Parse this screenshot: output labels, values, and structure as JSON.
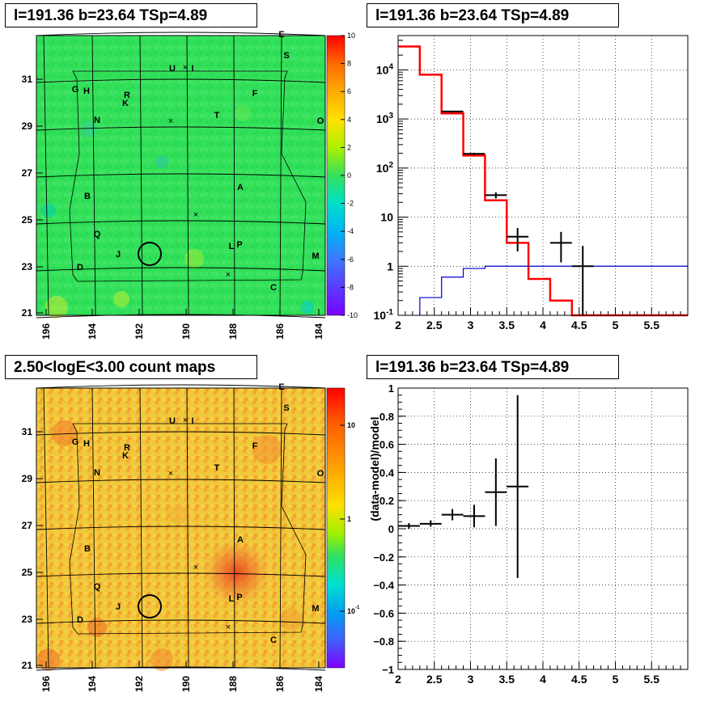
{
  "panels": {
    "tl_title": "l=191.36 b=23.64 TSp=4.89",
    "tr_title": "l=191.36 b=23.64 TSp=4.89",
    "bl_title": "2.50<logE<3.00 count maps",
    "br_title": "l=191.36 b=23.64 TSp=4.89"
  },
  "maps": {
    "x_ticks": [
      "196",
      "194",
      "192",
      "190",
      "188",
      "186",
      "184"
    ],
    "y_ticks": [
      "31",
      "29",
      "27",
      "25",
      "23",
      "21"
    ],
    "tl_colorbar_ticks": [
      "10",
      "8",
      "6",
      "4",
      "2",
      "0",
      "-2",
      "-4",
      "-6",
      "-8",
      "-10"
    ],
    "bl_colorbar_ticks": [
      "10",
      "1",
      "10^-1"
    ],
    "source_labels": [
      "E",
      "S",
      "U",
      "I",
      "G",
      "H",
      "R",
      "K",
      "F",
      "N",
      "T",
      "O",
      "A",
      "B",
      "Q",
      "L",
      "P",
      "J",
      "M",
      "D",
      "C"
    ],
    "colors": {
      "tl_background": "#33e05a",
      "bl_background": "#f2c63a",
      "bl_hotspot": "#f05a28"
    }
  },
  "chart_data": [
    {
      "type": "line",
      "panel": "top-right",
      "ylog": true,
      "xlim": [
        2,
        6
      ],
      "ylim": [
        0.1,
        50000
      ],
      "x_ticks": [
        "2",
        "2.5",
        "3",
        "3.5",
        "4",
        "4.5",
        "5",
        "5.5"
      ],
      "y_ticks": [
        "10^-1",
        "1",
        "10",
        "10^2",
        "10^3",
        "10^4"
      ],
      "grid": true,
      "series": [
        {
          "style": "red-step",
          "color": "#ff0000",
          "bins": [
            [
              2.0,
              2.3,
              30000
            ],
            [
              2.3,
              2.6,
              8000
            ],
            [
              2.6,
              2.9,
              1300
            ],
            [
              2.9,
              3.2,
              180
            ],
            [
              3.2,
              3.5,
              22
            ],
            [
              3.5,
              3.8,
              3.0
            ],
            [
              3.8,
              4.1,
              0.55
            ],
            [
              4.1,
              4.4,
              0.2
            ],
            [
              4.4,
              6.0,
              0.1
            ]
          ]
        },
        {
          "style": "blue-step",
          "color": "#0000cc",
          "bins": [
            [
              2.3,
              2.6,
              0.23
            ],
            [
              2.6,
              2.9,
              0.6
            ],
            [
              2.9,
              3.2,
              0.9
            ],
            [
              3.2,
              6.0,
              1.0
            ]
          ]
        },
        {
          "style": "black-errorbars",
          "color": "#000000",
          "points": [
            {
              "x": 2.75,
              "xlo": 2.6,
              "xhi": 2.9,
              "y": 1420,
              "ylo": 1380,
              "yhi": 1460
            },
            {
              "x": 3.05,
              "xlo": 2.9,
              "xhi": 3.2,
              "y": 195,
              "ylo": 185,
              "yhi": 205
            },
            {
              "x": 3.35,
              "xlo": 3.2,
              "xhi": 3.5,
              "y": 28,
              "ylo": 24,
              "yhi": 32
            },
            {
              "x": 3.65,
              "xlo": 3.5,
              "xhi": 3.8,
              "y": 4,
              "ylo": 2,
              "yhi": 6
            },
            {
              "x": 4.25,
              "xlo": 4.1,
              "xhi": 4.4,
              "y": 3,
              "ylo": 1.2,
              "yhi": 5
            },
            {
              "x": 4.55,
              "xlo": 4.4,
              "xhi": 4.7,
              "y": 1,
              "ylo": 0.1,
              "yhi": 2.6
            }
          ]
        }
      ]
    },
    {
      "type": "scatter",
      "panel": "bottom-right",
      "ylabel": "(data-model)/model",
      "xlim": [
        2,
        6
      ],
      "ylim": [
        -1,
        1
      ],
      "x_ticks": [
        "2",
        "2.5",
        "3",
        "3.5",
        "4",
        "4.5",
        "5",
        "5.5"
      ],
      "y_ticks": [
        "-1",
        "-0.8",
        "-0.6",
        "-0.4",
        "-0.2",
        "0",
        "0.2",
        "0.4",
        "0.6",
        "0.8",
        "1"
      ],
      "grid": true,
      "points": [
        {
          "x": 2.15,
          "xlo": 2.0,
          "xhi": 2.3,
          "y": 0.02,
          "ylo": 0.0,
          "yhi": 0.04
        },
        {
          "x": 2.45,
          "xlo": 2.3,
          "xhi": 2.6,
          "y": 0.035,
          "ylo": 0.015,
          "yhi": 0.06
        },
        {
          "x": 2.75,
          "xlo": 2.6,
          "xhi": 2.9,
          "y": 0.1,
          "ylo": 0.06,
          "yhi": 0.14
        },
        {
          "x": 3.05,
          "xlo": 2.9,
          "xhi": 3.2,
          "y": 0.09,
          "ylo": 0.01,
          "yhi": 0.17
        },
        {
          "x": 3.35,
          "xlo": 3.2,
          "xhi": 3.5,
          "y": 0.26,
          "ylo": 0.02,
          "yhi": 0.5
        },
        {
          "x": 3.65,
          "xlo": 3.5,
          "xhi": 3.8,
          "y": 0.3,
          "ylo": -0.35,
          "yhi": 0.95
        }
      ]
    }
  ]
}
